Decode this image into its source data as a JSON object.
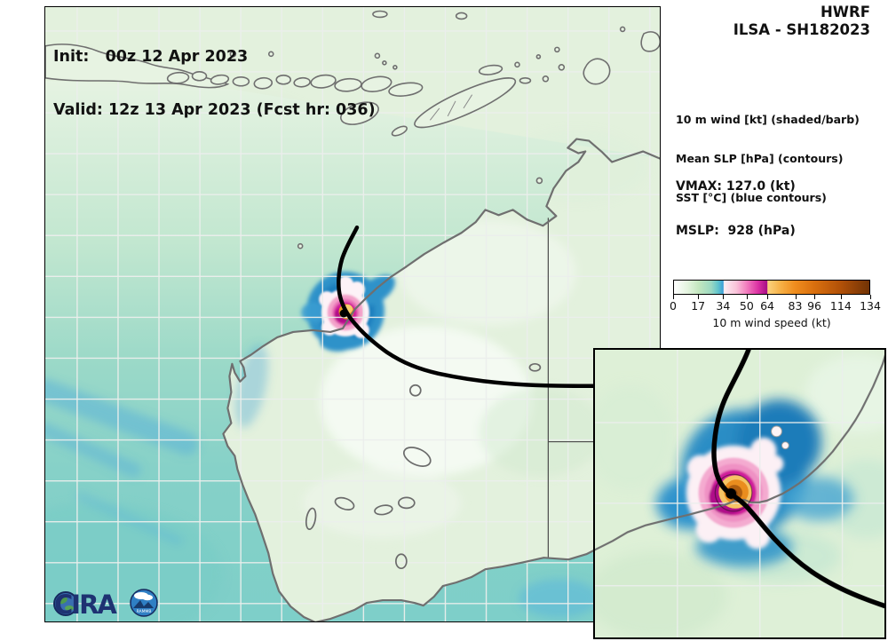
{
  "header": {
    "init_line": "Init:   00z 12 Apr 2023",
    "valid_line": "Valid: 12z 13 Apr 2023 (Fcst hr: 036)",
    "model": "HWRF",
    "storm_id": "ILSA - SH182023"
  },
  "legend": {
    "line1": "10 m wind [kt] (shaded/barb)",
    "line2": "Mean SLP [hPa] (contours)",
    "line3": "SST [°C] (blue contours)"
  },
  "stats": {
    "vmax_line": "VMAX: 127.0 (kt)",
    "mslp_line": "MSLP:  928 (hPa)",
    "vmax_kt": 127.0,
    "mslp_hpa": 928
  },
  "colorbar": {
    "tick_labels": [
      "0",
      "17",
      "34",
      "50",
      "64",
      "83",
      "96",
      "114",
      "134"
    ],
    "tick_values": [
      0,
      17,
      34,
      50,
      64,
      83,
      96,
      114,
      134
    ],
    "max": 134,
    "label": "10 m wind speed (kt)"
  },
  "logos": {
    "cira": "CIRA",
    "rammb": "RAMMB"
  },
  "colors": {
    "track": "#000000",
    "coastline": "#6f6f6f",
    "land_green": "#e3f1dd",
    "ocean_teal": "#7ecfc9",
    "wind_blue": "#2f92c9",
    "wind_magenta": "#cf1d9b",
    "wind_orange": "#ee9b21"
  }
}
